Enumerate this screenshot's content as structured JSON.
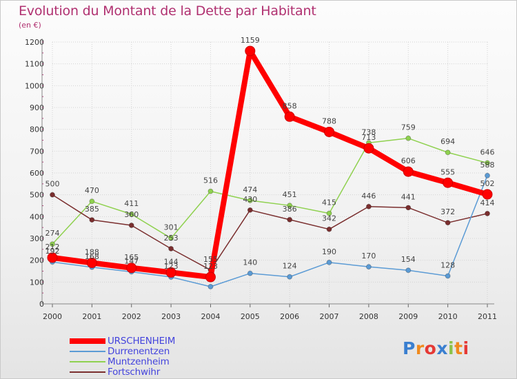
{
  "title": "Evolution du Montant de la Dette par Habitant",
  "subtitle": "(en €)",
  "chart_data": {
    "type": "line",
    "title": "Evolution du Montant de la Dette par Habitant",
    "subtitle": "(en €)",
    "x": [
      "2000",
      "2001",
      "2002",
      "2003",
      "2004",
      "2005",
      "2006",
      "2007",
      "2008",
      "2009",
      "2010",
      "2011"
    ],
    "y_ticks": [
      "0",
      "100",
      "200",
      "300",
      "400",
      "500",
      "600",
      "700",
      "800",
      "900",
      "1000",
      "1100",
      "1200"
    ],
    "ylim": [
      0,
      1200
    ],
    "grid": true,
    "legend_position": "bottom-left",
    "series": [
      {
        "name": "URSCHENHEIM",
        "color": "#ff0000",
        "values": [
          212,
          188,
          165,
          144,
          123,
          1159,
          858,
          788,
          713,
          606,
          555,
          502
        ],
        "labels": [
          "212",
          "188",
          "165",
          "144",
          "123",
          "1159",
          "858",
          "788",
          "713",
          "606",
          "555",
          "502"
        ]
      },
      {
        "name": "Durrenentzen",
        "color": "#5b9bd5",
        "values": [
          192,
          168,
          147,
          123,
          79,
          140,
          124,
          190,
          170,
          154,
          128,
          588
        ],
        "labels": [
          "192",
          "168",
          "147",
          "123",
          "",
          "140",
          "124",
          "190",
          "170",
          "154",
          "128",
          "588"
        ]
      },
      {
        "name": "Muntzenheim",
        "color": "#8fd14f",
        "values": [
          274,
          470,
          411,
          301,
          516,
          474,
          451,
          415,
          738,
          759,
          694,
          646
        ],
        "labels": [
          "274",
          "470",
          "411",
          "301",
          "516",
          "474",
          "451",
          "415",
          "738",
          "759",
          "694",
          "646"
        ]
      },
      {
        "name": "Fortschwihr",
        "color": "#7a2e2e",
        "values": [
          500,
          385,
          360,
          253,
          155,
          430,
          386,
          342,
          446,
          441,
          372,
          414
        ],
        "labels": [
          "500",
          "385",
          "360",
          "253",
          "155",
          "430",
          "386",
          "342",
          "446",
          "441",
          "372",
          "414"
        ]
      }
    ]
  },
  "logo": {
    "letters": [
      "P",
      "r",
      "o",
      "x",
      "i",
      "t",
      "i"
    ],
    "colors": [
      "#3a7fd0",
      "#f08a1e",
      "#e53935",
      "#3a7fd0",
      "#8bc34a",
      "#f08a1e",
      "#e53935"
    ]
  }
}
